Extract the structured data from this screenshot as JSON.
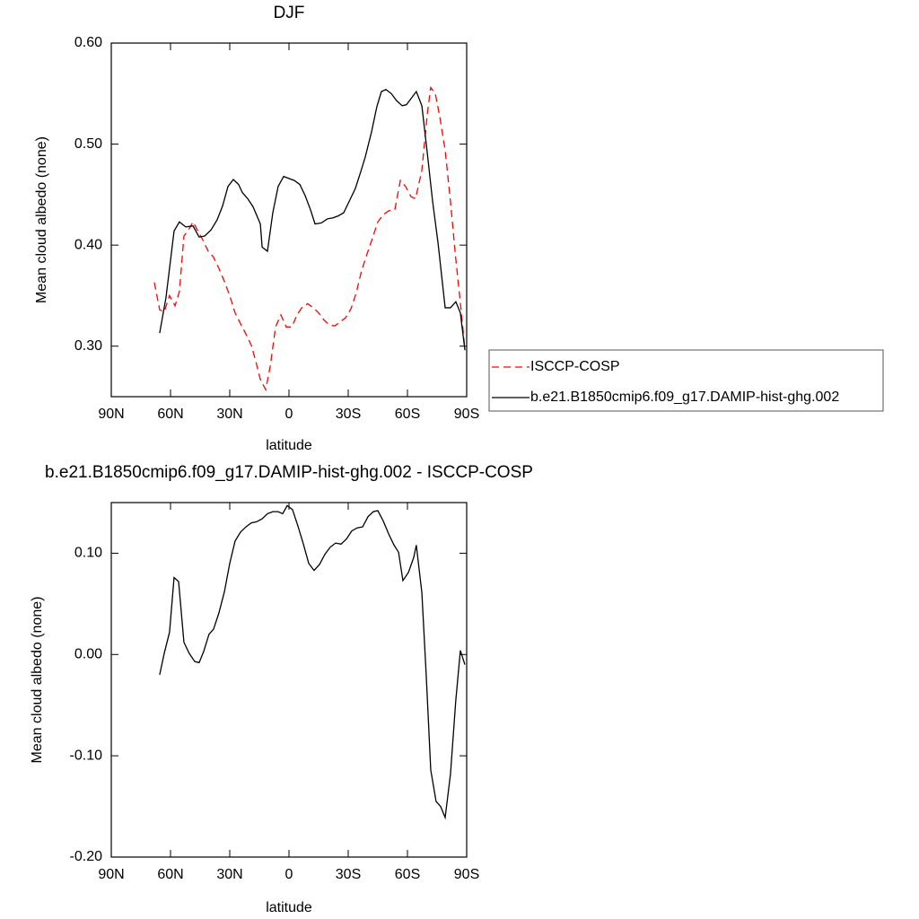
{
  "chart_data": [
    {
      "type": "line",
      "title": "DJF",
      "xlabel": "latitude",
      "ylabel": "Mean cloud albedo (none)",
      "xlim": [
        90,
        -90
      ],
      "xticks": [
        {
          "value": 90,
          "label": "90N"
        },
        {
          "value": 60,
          "label": "60N"
        },
        {
          "value": 30,
          "label": "30N"
        },
        0,
        {
          "value": -30,
          "label": "30S"
        },
        {
          "value": -60,
          "label": "60S"
        },
        {
          "value": -90,
          "label": "90S"
        }
      ],
      "ylim": [
        0.25,
        0.6
      ],
      "yticks": [
        {
          "value": 0.3,
          "label": "0.30"
        },
        {
          "value": 0.4,
          "label": "0.40"
        },
        {
          "value": 0.5,
          "label": "0.50"
        },
        {
          "value": 0.6,
          "label": "0.60"
        }
      ],
      "legend": "right",
      "series": [
        {
          "name": "ISCCP-COSP",
          "color": "#ff0000",
          "dashed": true,
          "x": [
            68.2,
            65.5,
            63.2,
            60.5,
            57.7,
            55.5,
            53.2,
            50.9,
            48.6,
            46.4,
            43.6,
            40.9,
            38.2,
            35.5,
            32.7,
            30,
            27.3,
            24.5,
            21.8,
            19.1,
            16.8,
            14.5,
            11.8,
            9.5,
            6.8,
            4.1,
            1.4,
            -1.4,
            -4.1,
            -6.8,
            -9.5,
            -12.3,
            -15,
            -17.7,
            -20.5,
            -23.2,
            -25.9,
            -28.6,
            -31.4,
            -34.1,
            -36.8,
            -39.5,
            -42.3,
            -45,
            -47.7,
            -50.5,
            -53.6,
            -56.4,
            -59.1,
            -61.8,
            -64.1,
            -67.3,
            -70,
            -71.8,
            -74.1,
            -76.4,
            -79.1,
            -81.8,
            -84.5,
            -86.8,
            -89.1
          ],
          "values": [
            0.363,
            0.336,
            0.334,
            0.35,
            0.34,
            0.354,
            0.409,
            0.415,
            0.423,
            0.415,
            0.405,
            0.394,
            0.388,
            0.377,
            0.364,
            0.35,
            0.333,
            0.322,
            0.312,
            0.301,
            0.285,
            0.267,
            0.257,
            0.28,
            0.319,
            0.331,
            0.319,
            0.319,
            0.331,
            0.339,
            0.342,
            0.338,
            0.333,
            0.326,
            0.321,
            0.32,
            0.324,
            0.328,
            0.337,
            0.353,
            0.375,
            0.391,
            0.407,
            0.423,
            0.43,
            0.434,
            0.435,
            0.464,
            0.458,
            0.448,
            0.446,
            0.474,
            0.529,
            0.556,
            0.55,
            0.527,
            0.494,
            0.443,
            0.386,
            0.343,
            0.297
          ]
        },
        {
          "name": "b.e21.B1850cmip6.f09_g17.DAMIP-hist-ghg.002",
          "color": "#000000",
          "dashed": false,
          "x": [
            65.5,
            62.3,
            58.2,
            55.5,
            52.3,
            48.6,
            45.5,
            42.7,
            39.5,
            36.4,
            33.6,
            30.9,
            28.2,
            25.5,
            23.6,
            20.9,
            18.2,
            14.5,
            13.6,
            10.9,
            8.2,
            5.5,
            2.7,
            0,
            -2.7,
            -5.5,
            -8.2,
            -10.9,
            -13.2,
            -16.4,
            -19.5,
            -22.3,
            -25,
            -27.7,
            -30.9,
            -33.6,
            -36.4,
            -38.6,
            -41.8,
            -44.5,
            -46.8,
            -49.1,
            -51.8,
            -54.5,
            -57.3,
            -59.5,
            -61.8,
            -64.5,
            -67.3,
            -70,
            -72.7,
            -75.5,
            -79.1,
            -81.8,
            -84.5,
            -86.8,
            -89.1
          ],
          "values": [
            0.313,
            0.348,
            0.414,
            0.423,
            0.418,
            0.419,
            0.408,
            0.409,
            0.415,
            0.425,
            0.439,
            0.458,
            0.465,
            0.46,
            0.452,
            0.446,
            0.438,
            0.421,
            0.398,
            0.394,
            0.432,
            0.458,
            0.468,
            0.466,
            0.464,
            0.46,
            0.449,
            0.435,
            0.421,
            0.422,
            0.426,
            0.427,
            0.429,
            0.432,
            0.445,
            0.456,
            0.473,
            0.487,
            0.512,
            0.537,
            0.552,
            0.554,
            0.55,
            0.543,
            0.538,
            0.539,
            0.545,
            0.552,
            0.538,
            0.492,
            0.444,
            0.402,
            0.338,
            0.338,
            0.344,
            0.333,
            0.296
          ]
        }
      ]
    },
    {
      "type": "line",
      "title": "b.e21.B1850cmip6.f09_g17.DAMIP-hist-ghg.002 - ISCCP-COSP",
      "xlabel": "latitude",
      "ylabel": "Mean cloud albedo (none)",
      "xlim": [
        90,
        -90
      ],
      "xticks": [
        {
          "value": 90,
          "label": "90N"
        },
        {
          "value": 60,
          "label": "60N"
        },
        {
          "value": 30,
          "label": "30N"
        },
        0,
        {
          "value": -30,
          "label": "30S"
        },
        {
          "value": -60,
          "label": "60S"
        },
        {
          "value": -90,
          "label": "90S"
        }
      ],
      "ylim": [
        -0.2,
        0.15
      ],
      "yticks": [
        {
          "value": -0.2,
          "label": "-0.20"
        },
        {
          "value": -0.1,
          "label": "-0.10"
        },
        {
          "value": 0,
          "label": "0.00"
        },
        {
          "value": 0.1,
          "label": "0.10"
        }
      ],
      "series": [
        {
          "color": "#000000",
          "dashed": false,
          "x": [
            65.5,
            63.2,
            60.5,
            58.2,
            55.9,
            53.2,
            50.5,
            47.7,
            45.5,
            43.2,
            40.5,
            38.2,
            35.5,
            32.7,
            30,
            27.3,
            24.5,
            21.8,
            19.1,
            16.4,
            13.6,
            10.9,
            8.2,
            5.5,
            3.2,
            0.9,
            -1.8,
            -4.5,
            -7.3,
            -10,
            -12.7,
            -15.5,
            -18.2,
            -20.9,
            -23.6,
            -26.4,
            -29.1,
            -31.8,
            -34.5,
            -37.3,
            -40,
            -42.7,
            -45,
            -47.7,
            -50.5,
            -53.2,
            -55.5,
            -57.7,
            -60.5,
            -63.2,
            -64.5,
            -67.3,
            -69.5,
            -71.8,
            -74.5,
            -76.8,
            -79.1,
            -81.8,
            -84.5,
            -86.8,
            -89.1
          ],
          "values": [
            -0.02,
            0.001,
            0.022,
            0.076,
            0.072,
            0.012,
            0.001,
            -0.007,
            -0.008,
            0.003,
            0.02,
            0.025,
            0.041,
            0.062,
            0.09,
            0.112,
            0.121,
            0.126,
            0.13,
            0.131,
            0.134,
            0.139,
            0.141,
            0.141,
            0.139,
            0.147,
            0.143,
            0.127,
            0.109,
            0.09,
            0.083,
            0.089,
            0.099,
            0.106,
            0.11,
            0.109,
            0.114,
            0.122,
            0.125,
            0.126,
            0.136,
            0.141,
            0.142,
            0.132,
            0.119,
            0.108,
            0.101,
            0.073,
            0.081,
            0.096,
            0.108,
            0.061,
            -0.02,
            -0.114,
            -0.145,
            -0.15,
            -0.161,
            -0.118,
            -0.045,
            0.004,
            -0.01
          ]
        }
      ]
    }
  ]
}
